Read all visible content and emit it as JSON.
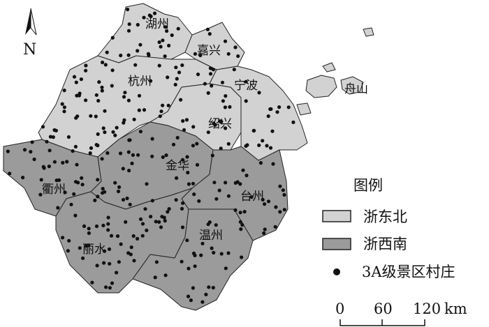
{
  "north_label": "N",
  "regions": {
    "northeast": [
      "湖州",
      "嘉兴",
      "杭州",
      "宁波",
      "绍兴",
      "舟山"
    ],
    "southwest": [
      "衢州",
      "金华",
      "台州",
      "温州",
      "丽水"
    ]
  },
  "legend": {
    "title": "图例",
    "items": [
      {
        "label": "浙东北",
        "color": "#d2d2d2"
      },
      {
        "label": "浙西南",
        "color": "#9b9b9b"
      },
      {
        "label": "3A级景区村庄",
        "color": "#111111"
      }
    ]
  },
  "scale_bar": {
    "ticks": [
      "0",
      "60",
      "120"
    ],
    "unit": "km"
  }
}
